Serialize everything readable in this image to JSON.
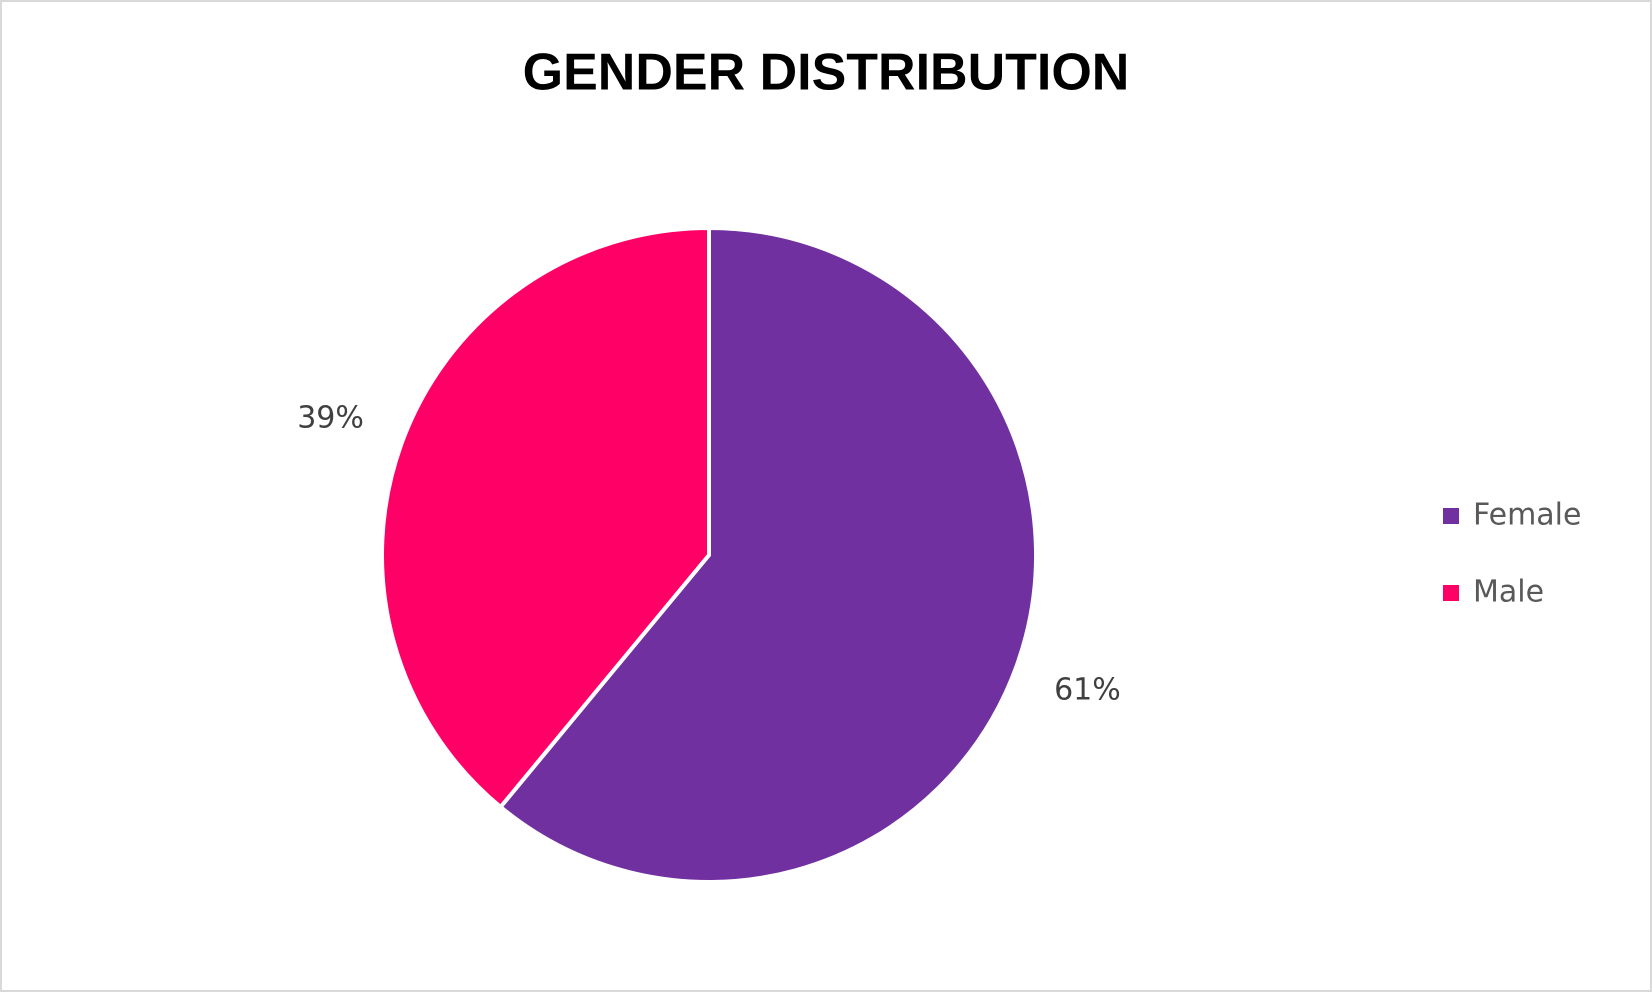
{
  "chart_data": {
    "type": "pie",
    "title": "GENDER DISTRIBUTION",
    "categories": [
      "Female",
      "Male"
    ],
    "values": [
      61,
      39
    ],
    "value_labels": [
      "61%",
      "39%"
    ],
    "colors": [
      "#7030a0",
      "#ff0066"
    ],
    "legend": "right"
  }
}
